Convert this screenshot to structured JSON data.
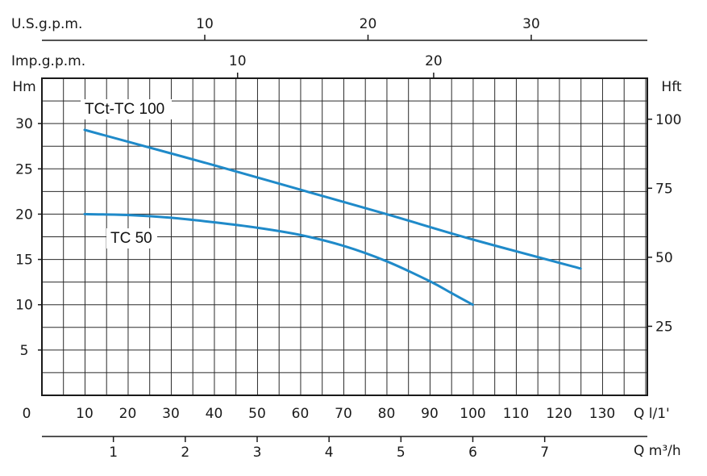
{
  "chart_data": {
    "type": "line",
    "x_unit_label": "Q l/1'",
    "y_left_unit_label": "Hm",
    "y_right_unit_label": "Hft",
    "top_axis_1_label": "U.S.g.p.m.",
    "top_axis_2_label": "Imp.g.p.m.",
    "bottom_axis_2_label": "Q m³/h",
    "x_range": [
      0,
      140
    ],
    "y_range": [
      0,
      35
    ],
    "grid": true,
    "x_ticks": [
      0,
      10,
      20,
      30,
      40,
      50,
      60,
      70,
      80,
      90,
      100,
      110,
      120,
      130
    ],
    "x_tick_labels": [
      "0",
      "10",
      "20",
      "30",
      "40",
      "50",
      "60",
      "70",
      "80",
      "90",
      "100",
      "110",
      "120",
      "130"
    ],
    "y_left_ticks": [
      5,
      10,
      15,
      20,
      25,
      30
    ],
    "y_left_tick_labels": [
      "5",
      "10",
      "15",
      "20",
      "25",
      "30"
    ],
    "y_right_ticks": [
      25,
      50,
      75,
      100
    ],
    "y_right_tick_labels": [
      "25",
      "50",
      "75",
      "100"
    ],
    "usgpm_ticks": [
      10,
      20,
      30
    ],
    "usgpm_tick_labels": [
      "10",
      "20",
      "30"
    ],
    "impgpm_ticks": [
      10,
      20
    ],
    "impgpm_tick_labels": [
      "10",
      "20"
    ],
    "m3h_ticks": [
      1,
      2,
      3,
      4,
      5,
      6,
      7
    ],
    "m3h_tick_labels": [
      "1",
      "2",
      "3",
      "4",
      "5",
      "6",
      "7"
    ],
    "series": [
      {
        "name": "TCt-TC 100",
        "color": "#1f8ac9",
        "x": [
          10,
          20,
          40,
          60,
          80,
          100,
          125
        ],
        "y": [
          29.3,
          28.0,
          25.4,
          22.7,
          20.0,
          17.2,
          14.0
        ]
      },
      {
        "name": "TC 50",
        "color": "#1f8ac9",
        "x": [
          10,
          20,
          30,
          40,
          50,
          60,
          70,
          80,
          90,
          95,
          100
        ],
        "y": [
          20.0,
          19.9,
          19.6,
          19.1,
          18.5,
          17.7,
          16.5,
          14.8,
          12.6,
          11.3,
          10.0
        ]
      }
    ]
  }
}
